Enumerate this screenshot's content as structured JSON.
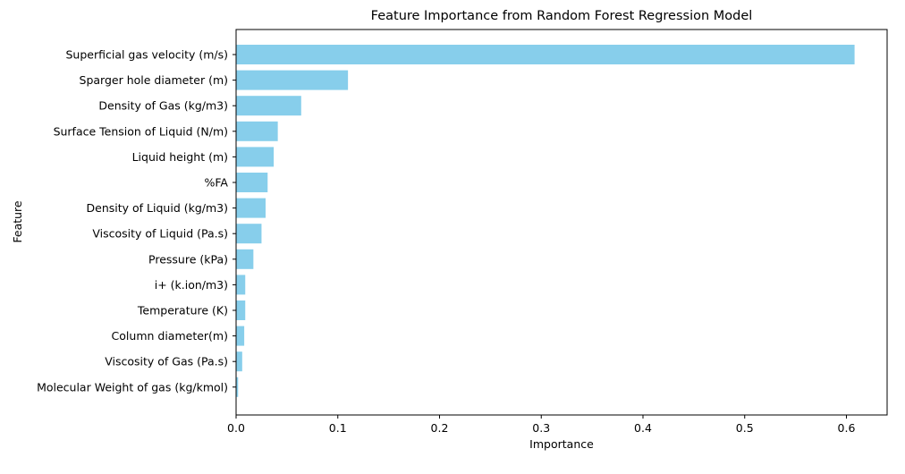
{
  "chart_data": {
    "type": "bar",
    "orientation": "horizontal",
    "title": "Feature Importance from Random Forest Regression Model",
    "xlabel": "Importance",
    "ylabel": "Feature",
    "xlim": [
      0,
      0.64
    ],
    "xticks": [
      "0.0",
      "0.1",
      "0.2",
      "0.3",
      "0.4",
      "0.5",
      "0.6"
    ],
    "xtick_values": [
      0,
      0.1,
      0.2,
      0.3,
      0.4,
      0.5,
      0.6
    ],
    "grid": false,
    "bar_color": "#87ceeb",
    "categories": [
      "Superficial gas velocity (m/s)",
      "Sparger hole diameter (m)",
      "Density of Gas (kg/m3)",
      "Surface Tension of Liquid (N/m)",
      "Liquid height (m)",
      "%FA",
      "Density of Liquid (kg/m3)",
      "Viscosity of Liquid (Pa.s)",
      "Pressure (kPa)",
      "i+ (k.ion/m3)",
      "Temperature (K)",
      "Column diameter(m)",
      "Viscosity of Gas (Pa.s)",
      "Molecular Weight of gas (kg/kmol)"
    ],
    "values": [
      0.608,
      0.11,
      0.064,
      0.041,
      0.037,
      0.031,
      0.029,
      0.025,
      0.017,
      0.009,
      0.009,
      0.008,
      0.006,
      0.002
    ]
  }
}
